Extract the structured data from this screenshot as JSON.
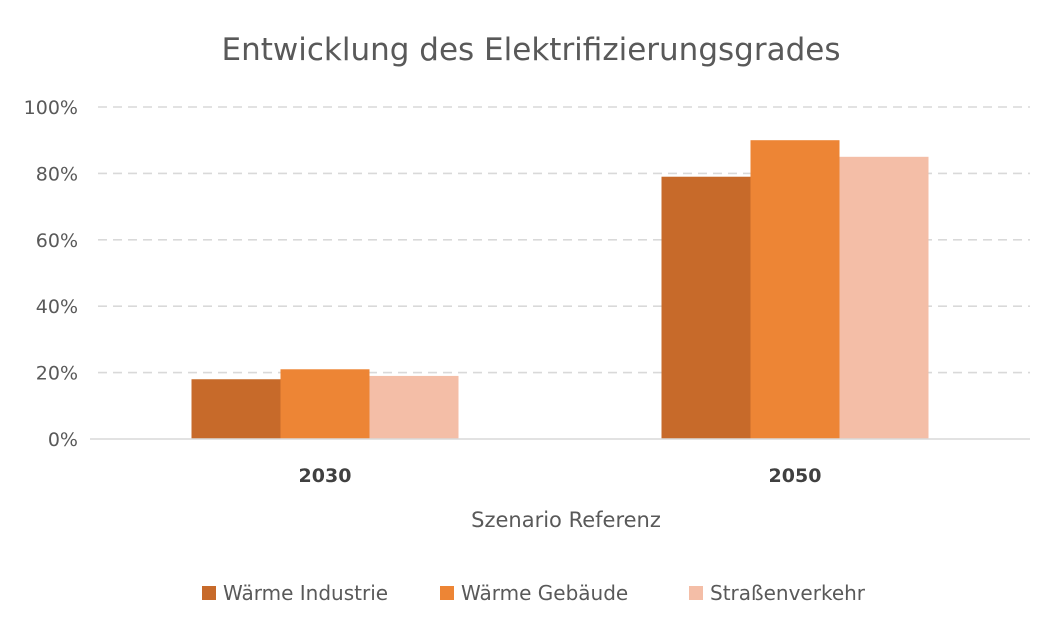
{
  "chart_data": {
    "type": "bar",
    "title": "Entwicklung des Elektrifizierungsgrades",
    "xlabel": "Szenario Referenz",
    "ylabel": "",
    "categories": [
      "2030",
      "2050"
    ],
    "series": [
      {
        "name": "Wärme Industrie",
        "values": [
          18,
          79
        ],
        "color": "#c76a2a"
      },
      {
        "name": "Wärme Gebäude",
        "values": [
          21,
          90
        ],
        "color": "#ed8535"
      },
      {
        "name": "Straßenverkehr",
        "values": [
          19,
          85
        ],
        "color": "#f4bea7"
      }
    ],
    "ylim": [
      0,
      100
    ],
    "yticks": [
      "0%",
      "20%",
      "40%",
      "60%",
      "80%",
      "100%"
    ],
    "grid": true,
    "legend_position": "bottom"
  }
}
